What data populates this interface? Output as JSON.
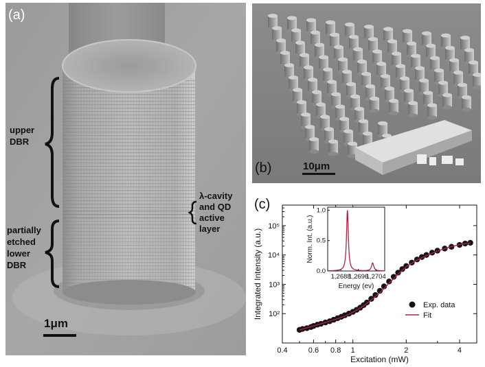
{
  "panel_a": {
    "label": "(a)",
    "annotations": {
      "upper_dbr": [
        "upper",
        "DBR"
      ],
      "cavity": [
        "λ-cavity",
        "and QD",
        "active",
        "layer"
      ],
      "lower_dbr": [
        "partially",
        "etched",
        "lower",
        "DBR"
      ]
    },
    "scale_bar": "1μm"
  },
  "panel_b": {
    "label": "(b)",
    "scale_bar": "10μm"
  },
  "panel_c": {
    "label": "(c)",
    "colors": {
      "data": "#151515",
      "fit": "#b0203a"
    },
    "chart_data": {
      "type": "scatter",
      "xlabel": "Excitation (mW)",
      "ylabel": "Integrated Intensity (a.u.)",
      "x_scale": "log",
      "y_scale": "log",
      "xlim": [
        0.4,
        5
      ],
      "ylim": [
        10,
        500000
      ],
      "x_ticks": [
        0.4,
        0.6,
        0.8,
        1,
        2,
        4
      ],
      "x_tick_labels": [
        "0.4",
        "0.6",
        "0.8",
        "1",
        "2",
        "4"
      ],
      "y_ticks": [
        100,
        1000,
        10000,
        100000
      ],
      "y_tick_labels": [
        "10²",
        "10³",
        "10⁴",
        "10⁵"
      ],
      "legend_position": "bottom-right",
      "series": [
        {
          "name": "Exp. data",
          "kind": "scatter",
          "x": [
            0.5,
            0.52,
            0.55,
            0.58,
            0.6,
            0.63,
            0.66,
            0.7,
            0.74,
            0.78,
            0.82,
            0.86,
            0.9,
            0.95,
            1.0,
            1.05,
            1.1,
            1.15,
            1.2,
            1.27,
            1.34,
            1.42,
            1.5,
            1.6,
            1.7,
            1.8,
            1.9,
            2.0,
            2.15,
            2.3,
            2.45,
            2.6,
            2.8,
            3.0,
            3.3,
            3.6,
            4.0,
            4.3,
            4.6
          ],
          "y": [
            28,
            30,
            32,
            35,
            38,
            42,
            45,
            50,
            55,
            62,
            70,
            78,
            88,
            100,
            115,
            135,
            160,
            195,
            240,
            320,
            430,
            600,
            850,
            1250,
            1800,
            2500,
            3300,
            4200,
            5500,
            7000,
            8500,
            10000,
            12000,
            14000,
            16500,
            19000,
            22000,
            24500,
            26000
          ]
        },
        {
          "name": "Fit",
          "kind": "line",
          "x": [
            0.5,
            0.6,
            0.7,
            0.8,
            0.9,
            1.0,
            1.1,
            1.2,
            1.3,
            1.4,
            1.5,
            1.6,
            1.8,
            2.0,
            2.3,
            2.6,
            3.0,
            3.5,
            4.0,
            4.6
          ],
          "y": [
            28,
            38,
            50,
            64,
            82,
            112,
            155,
            225,
            330,
            480,
            720,
            1100,
            2200,
            4000,
            6700,
            9500,
            13500,
            18500,
            22500,
            25500
          ]
        }
      ],
      "inset": {
        "type": "line",
        "xlabel": "Energy (ev)",
        "ylabel": "Norm. Int. (a.u.)",
        "xlim": [
          1.2682,
          1.2708
        ],
        "ylim": [
          0,
          1.05
        ],
        "x_ticks": [
          1.2688,
          1.2696,
          1.2704
        ],
        "x_tick_labels": [
          "1,2688",
          "1,2696",
          "1,2704"
        ],
        "y_ticks": [
          0,
          0.5,
          1.0
        ],
        "y_tick_labels": [
          "0.0",
          "0.5",
          "1.0"
        ],
        "peaks": [
          {
            "center": 1.2691,
            "height": 1.0,
            "fwhm": 0.0001
          },
          {
            "center": 1.27025,
            "height": 0.13,
            "fwhm": 0.00012
          }
        ]
      }
    }
  }
}
